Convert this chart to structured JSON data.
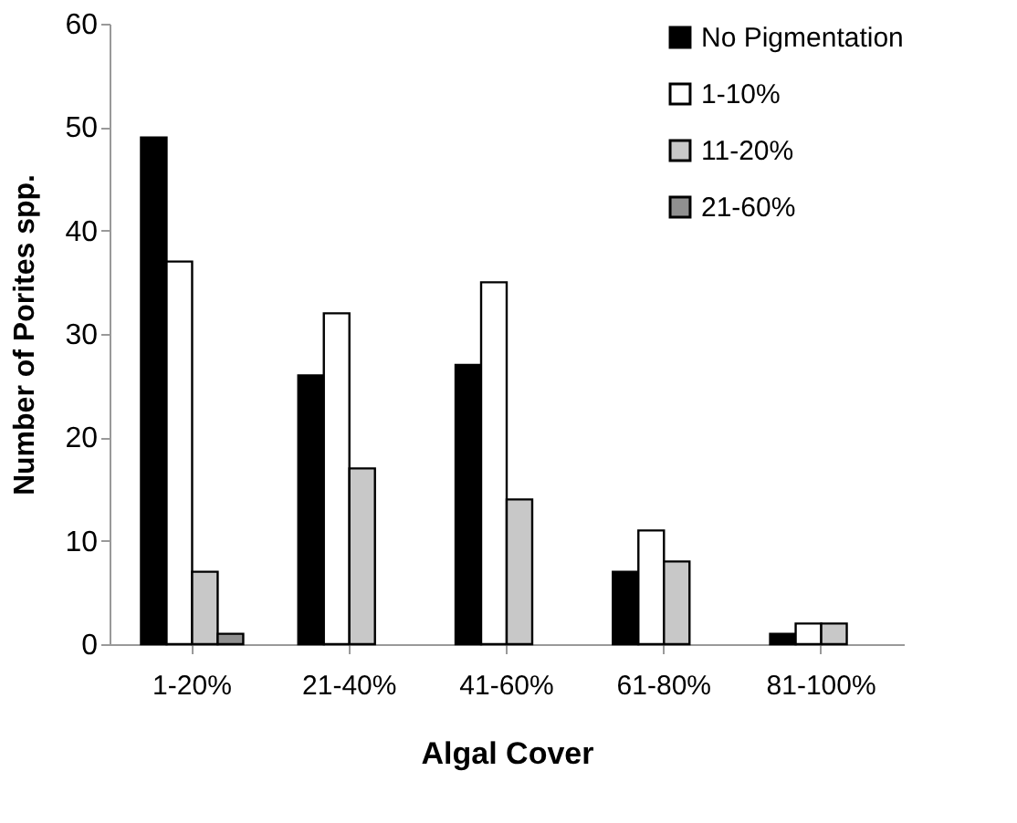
{
  "chart_data": {
    "type": "bar",
    "xlabel": "Algal Cover",
    "ylabel": "Number of Porites spp.",
    "categories": [
      "1-20%",
      "21-40%",
      "41-60%",
      "61-80%",
      "81-100%"
    ],
    "series": [
      {
        "name": "No Pigmentation",
        "color": "#000000",
        "values": [
          49,
          26,
          27,
          7,
          1
        ]
      },
      {
        "name": "1-10%",
        "color": "#ffffff",
        "values": [
          37,
          32,
          35,
          11,
          2
        ]
      },
      {
        "name": "11-20%",
        "color": "#c8c8c8",
        "values": [
          7,
          17,
          14,
          8,
          2
        ]
      },
      {
        "name": "21-60%",
        "color": "#909090",
        "values": [
          1,
          null,
          null,
          null,
          null
        ]
      }
    ],
    "ylim": [
      0,
      60
    ],
    "yticks": [
      0,
      10,
      20,
      30,
      40,
      50,
      60
    ],
    "grid": false,
    "legend": "top right"
  }
}
